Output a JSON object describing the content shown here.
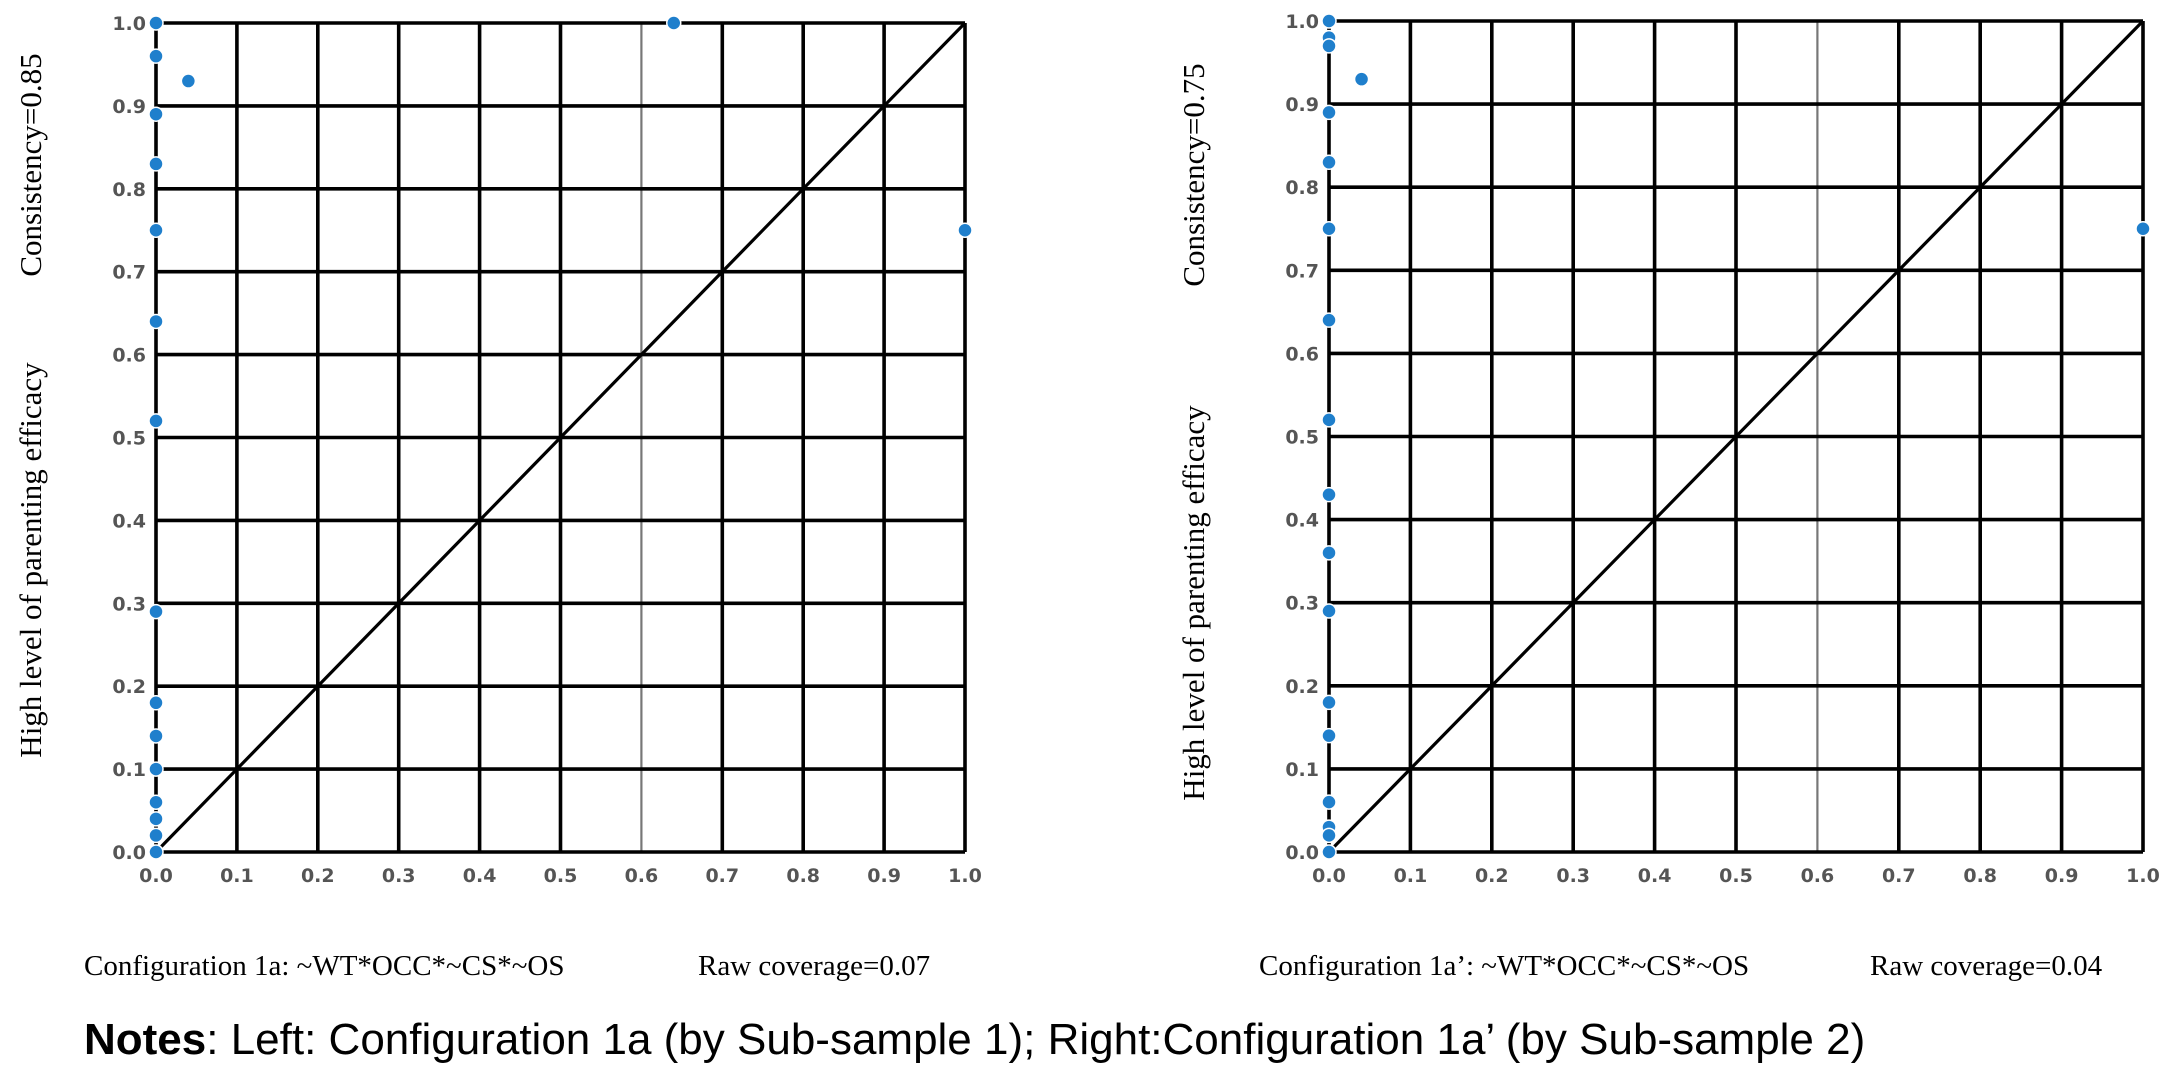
{
  "colors": {
    "point": "#1f7fcc",
    "grid": "#000000",
    "mid_grid": "#777777",
    "tick_text": "#555555"
  },
  "chart_data": [
    {
      "type": "scatter",
      "title": "",
      "ylabel": "High level of parenting efficacy",
      "consistency_label": "Consistency=0.85",
      "caption_config": "Configuration 1a: ~WT*OCC*~CS*~OS",
      "caption_coverage": "Raw coverage=0.07",
      "xlim": [
        0,
        1
      ],
      "ylim": [
        0,
        1
      ],
      "xticks": [
        "0.0",
        "0.1",
        "0.2",
        "0.3",
        "0.4",
        "0.5",
        "0.6",
        "0.7",
        "0.8",
        "0.9",
        "1.0"
      ],
      "yticks": [
        "0.0",
        "0.1",
        "0.2",
        "0.3",
        "0.4",
        "0.5",
        "0.6",
        "0.7",
        "0.8",
        "0.9",
        "1.0"
      ],
      "grid": true,
      "diagonal": true,
      "points": [
        {
          "x": 0.0,
          "y": 1.0
        },
        {
          "x": 0.0,
          "y": 0.96
        },
        {
          "x": 0.04,
          "y": 0.93
        },
        {
          "x": 0.0,
          "y": 0.89
        },
        {
          "x": 0.0,
          "y": 0.83
        },
        {
          "x": 0.0,
          "y": 0.75
        },
        {
          "x": 0.0,
          "y": 0.64
        },
        {
          "x": 0.0,
          "y": 0.52
        },
        {
          "x": 0.0,
          "y": 0.29
        },
        {
          "x": 0.0,
          "y": 0.18
        },
        {
          "x": 0.0,
          "y": 0.14
        },
        {
          "x": 0.0,
          "y": 0.1
        },
        {
          "x": 0.0,
          "y": 0.06
        },
        {
          "x": 0.0,
          "y": 0.04
        },
        {
          "x": 0.0,
          "y": 0.02
        },
        {
          "x": 0.0,
          "y": 0.0
        },
        {
          "x": 0.64,
          "y": 1.0
        },
        {
          "x": 1.0,
          "y": 0.75
        }
      ]
    },
    {
      "type": "scatter",
      "title": "",
      "ylabel": "High level of parenting efficacy",
      "consistency_label": "Consistency=0.75",
      "caption_config": "Configuration 1a’: ~WT*OCC*~CS*~OS",
      "caption_coverage": "Raw coverage=0.04",
      "xlim": [
        0,
        1
      ],
      "ylim": [
        0,
        1
      ],
      "xticks": [
        "0.0",
        "0.1",
        "0.2",
        "0.3",
        "0.4",
        "0.5",
        "0.6",
        "0.7",
        "0.8",
        "0.9",
        "1.0"
      ],
      "yticks": [
        "0.0",
        "0.1",
        "0.2",
        "0.3",
        "0.4",
        "0.5",
        "0.6",
        "0.7",
        "0.8",
        "0.9",
        "1.0"
      ],
      "grid": true,
      "diagonal": true,
      "points": [
        {
          "x": 0.0,
          "y": 1.0
        },
        {
          "x": 0.0,
          "y": 0.98
        },
        {
          "x": 0.0,
          "y": 0.97
        },
        {
          "x": 0.04,
          "y": 0.93
        },
        {
          "x": 0.0,
          "y": 0.89
        },
        {
          "x": 0.0,
          "y": 0.83
        },
        {
          "x": 0.0,
          "y": 0.75
        },
        {
          "x": 0.0,
          "y": 0.64
        },
        {
          "x": 0.0,
          "y": 0.52
        },
        {
          "x": 0.0,
          "y": 0.43
        },
        {
          "x": 0.0,
          "y": 0.36
        },
        {
          "x": 0.0,
          "y": 0.29
        },
        {
          "x": 0.0,
          "y": 0.18
        },
        {
          "x": 0.0,
          "y": 0.14
        },
        {
          "x": 0.0,
          "y": 0.06
        },
        {
          "x": 0.0,
          "y": 0.03
        },
        {
          "x": 0.0,
          "y": 0.02
        },
        {
          "x": 0.0,
          "y": 0.0
        },
        {
          "x": 1.0,
          "y": 0.75
        }
      ]
    }
  ],
  "notes": {
    "label": "Notes",
    "text": ": Left: Configuration 1a (by Sub-sample 1); Right:Configuration 1a’ (by Sub-sample 2)"
  }
}
